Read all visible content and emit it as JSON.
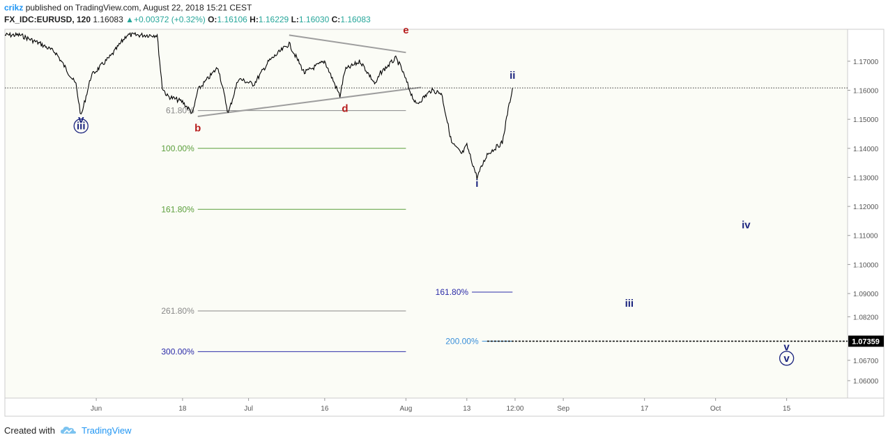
{
  "header": {
    "user": "crikz",
    "published": "published on TradingView.com, August 22, 2018 15:21 CEST",
    "symbol": "FX_IDC:EURUSD, 120",
    "last": "1.16083",
    "change": "+0.00372 (+0.32%)",
    "o_label": "O:",
    "o_val": "1.16106",
    "h_label": "H:",
    "h_val": "1.16229",
    "l_label": "L:",
    "l_val": "1.16030",
    "c_label": "C:",
    "c_val": "1.16083"
  },
  "footer": {
    "created_with": "Created with",
    "brand": "TradingView"
  },
  "colors": {
    "price": "#000000",
    "trendline": "#9e9e9e",
    "fib_gray": "#888888",
    "fib_green": "#5a9e3a",
    "fib_blue": "#2b2ba8",
    "fib_light_blue": "#3a8fd9",
    "wave_red": "#b71c1c",
    "wave_blue": "#1a237e",
    "current_price_bg": "#000000"
  },
  "chart_data": {
    "type": "line",
    "title": "",
    "xlabel": "",
    "ylabel": "",
    "ylim": [
      1.054,
      1.181
    ],
    "y_ticks": [
      "1.17000",
      "1.16000",
      "1.15000",
      "1.14000",
      "1.13000",
      "1.12000",
      "1.11000",
      "1.10000",
      "1.09000",
      "1.08200",
      "1.06700",
      "1.06000"
    ],
    "current_price_label": "1.07359",
    "current_price": 1.07359,
    "x_ticks": [
      {
        "label": "Jun",
        "date": "2018-06-01"
      },
      {
        "label": "18",
        "date": "2018-06-18"
      },
      {
        "label": "Jul",
        "date": "2018-07-01"
      },
      {
        "label": "16",
        "date": "2018-07-16"
      },
      {
        "label": "Aug",
        "date": "2018-08-01"
      },
      {
        "label": "13",
        "date": "2018-08-13"
      },
      {
        "label": "12:00",
        "date": "2018-08-22T12:00"
      },
      {
        "label": "Sep",
        "date": "2018-09-01"
      },
      {
        "label": "17",
        "date": "2018-09-17"
      },
      {
        "label": "Oct",
        "date": "2018-10-01"
      },
      {
        "label": "15",
        "date": "2018-10-15"
      }
    ],
    "series": [
      {
        "x": [
          "2018-05-14",
          "2018-05-17",
          "2018-05-21",
          "2018-05-24",
          "2018-05-28",
          "2018-05-29",
          "2018-05-31",
          "2018-06-04",
          "2018-06-07",
          "2018-06-11",
          "2018-06-13",
          "2018-06-14",
          "2018-06-15",
          "2018-06-18",
          "2018-06-20",
          "2018-06-21",
          "2018-06-25",
          "2018-06-27",
          "2018-06-29",
          "2018-07-02",
          "2018-07-05",
          "2018-07-09",
          "2018-07-12",
          "2018-07-16",
          "2018-07-19",
          "2018-07-20",
          "2018-07-23",
          "2018-07-26",
          "2018-07-27",
          "2018-07-30",
          "2018-07-31",
          "2018-08-02",
          "2018-08-03",
          "2018-08-06",
          "2018-08-08",
          "2018-08-10",
          "2018-08-12",
          "2018-08-13",
          "2018-08-15",
          "2018-08-17",
          "2018-08-20",
          "2018-08-21",
          "2018-08-22"
        ],
        "values": [
          1.179,
          1.179,
          1.176,
          1.173,
          1.162,
          1.151,
          1.165,
          1.172,
          1.179,
          1.179,
          1.179,
          1.161,
          1.158,
          1.156,
          1.152,
          1.16,
          1.168,
          1.152,
          1.164,
          1.162,
          1.17,
          1.176,
          1.166,
          1.17,
          1.158,
          1.167,
          1.17,
          1.162,
          1.166,
          1.171,
          1.168,
          1.159,
          1.155,
          1.16,
          1.159,
          1.142,
          1.138,
          1.141,
          1.13,
          1.138,
          1.142,
          1.152,
          1.1608
        ]
      }
    ],
    "trendlines": [
      {
        "from": {
          "date": "2018-07-09",
          "price": 1.179
        },
        "to": {
          "date": "2018-08-01",
          "price": 1.173
        }
      },
      {
        "from": {
          "date": "2018-06-21",
          "price": 1.151
        },
        "to": {
          "date": "2018-08-04",
          "price": 1.161
        }
      }
    ],
    "fib_levels": [
      {
        "label": "61.80%",
        "price": 1.153,
        "from": "2018-06-21",
        "to": "2018-08-01",
        "color": "gray"
      },
      {
        "label": "100.00%",
        "price": 1.14,
        "from": "2018-06-21",
        "to": "2018-08-01",
        "color": "green"
      },
      {
        "label": "161.80%",
        "price": 1.119,
        "from": "2018-06-21",
        "to": "2018-08-01",
        "color": "green"
      },
      {
        "label": "261.80%",
        "price": 1.084,
        "from": "2018-06-21",
        "to": "2018-08-01",
        "color": "gray"
      },
      {
        "label": "300.00%",
        "price": 1.07,
        "from": "2018-06-21",
        "to": "2018-08-01",
        "color": "blue"
      },
      {
        "label": "161.80%",
        "price": 1.0905,
        "from": "2018-08-14",
        "to": "2018-08-22",
        "color": "blue"
      },
      {
        "label": "200.00%",
        "price": 1.0736,
        "from": "2018-08-16",
        "to": "2018-08-22",
        "color": "light_blue"
      }
    ],
    "wave_labels": [
      {
        "text": "b",
        "date": "2018-06-21",
        "price": 1.1458,
        "color": "red",
        "circled": false
      },
      {
        "text": "d",
        "date": "2018-07-20",
        "price": 1.1525,
        "color": "red",
        "circled": false
      },
      {
        "text": "e",
        "date": "2018-08-01",
        "price": 1.1795,
        "color": "red",
        "circled": false
      },
      {
        "text": "v",
        "date": "2018-05-29",
        "price": 1.1488,
        "color": "blue",
        "circled": false
      },
      {
        "text": "iii",
        "date": "2018-05-29",
        "price": 1.1465,
        "color": "blue",
        "circled": true
      },
      {
        "text": "ii",
        "date": "2018-08-22",
        "price": 1.164,
        "color": "blue",
        "circled": false
      },
      {
        "text": "i",
        "date": "2018-08-15",
        "price": 1.1268,
        "color": "blue",
        "circled": false
      },
      {
        "text": "iv",
        "date": "2018-10-07",
        "price": 1.1125,
        "color": "blue",
        "circled": false
      },
      {
        "text": "iii",
        "date": "2018-09-14",
        "price": 1.0855,
        "color": "blue",
        "circled": false
      },
      {
        "text": "v",
        "date": "2018-10-15",
        "price": 1.0705,
        "color": "blue",
        "circled": false
      },
      {
        "text": "v",
        "date": "2018-10-15",
        "price": 1.0665,
        "color": "blue",
        "circled": true
      }
    ]
  }
}
